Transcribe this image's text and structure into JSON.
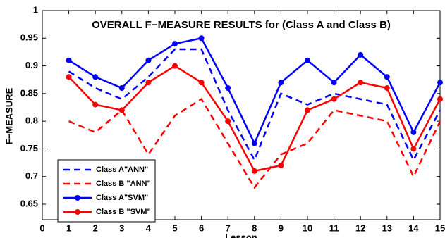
{
  "chart_data": {
    "type": "line",
    "title": "OVERALL F−MEASURE RESULTS for (Class A and Class B)",
    "x_label": "Lesson",
    "y_label": "F−MEASURE",
    "x": [
      1,
      2,
      3,
      4,
      5,
      6,
      7,
      8,
      9,
      10,
      11,
      12,
      13,
      14,
      15
    ],
    "series": [
      {
        "name": "Class A\"ANN\"",
        "color": "#0000ff",
        "dash": true,
        "marker": false,
        "values": [
          0.89,
          0.86,
          0.84,
          0.88,
          0.93,
          0.93,
          0.82,
          0.73,
          0.85,
          0.83,
          0.85,
          0.84,
          0.83,
          0.73,
          0.82
        ]
      },
      {
        "name": "Class B \"ANN\"",
        "color": "#ff0000",
        "dash": true,
        "marker": false,
        "values": [
          0.8,
          0.78,
          0.82,
          0.74,
          0.81,
          0.84,
          0.76,
          0.68,
          0.74,
          0.76,
          0.82,
          0.81,
          0.8,
          0.7,
          0.8
        ]
      },
      {
        "name": "Class A\"SVM\"",
        "color": "#0000ff",
        "dash": false,
        "marker": true,
        "values": [
          0.91,
          0.88,
          0.86,
          0.91,
          0.94,
          0.95,
          0.86,
          0.76,
          0.87,
          0.91,
          0.87,
          0.92,
          0.88,
          0.78,
          0.87
        ]
      },
      {
        "name": "Class B \"SVM\"",
        "color": "#ff0000",
        "dash": false,
        "marker": true,
        "values": [
          0.88,
          0.83,
          0.82,
          0.87,
          0.9,
          0.87,
          0.8,
          0.71,
          0.72,
          0.82,
          0.84,
          0.87,
          0.86,
          0.75,
          0.84
        ]
      }
    ],
    "xlim": [
      0,
      15
    ],
    "xticks": [
      0,
      1,
      2,
      3,
      4,
      5,
      6,
      7,
      8,
      9,
      10,
      11,
      12,
      13,
      14,
      15
    ],
    "ylim": [
      0.622,
      1
    ],
    "yticks": [
      0.65,
      0.7,
      0.75,
      0.8,
      0.85,
      0.9,
      0.95,
      1
    ],
    "legend": "lower left",
    "grid": false
  }
}
